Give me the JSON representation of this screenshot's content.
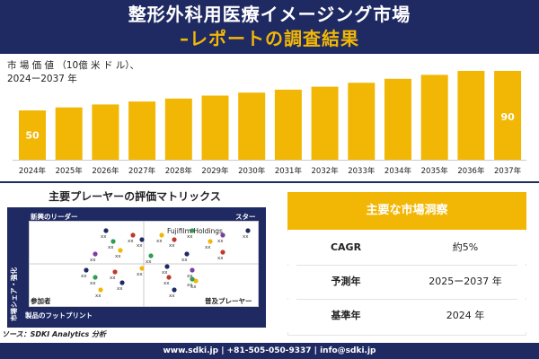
{
  "header": {
    "title_line1": "整形外科用医療イメージング市場",
    "title_line2": "–レポートの調査結果"
  },
  "market": {
    "label_line1": "市 場 価 値 （10億 米 ド ル）、",
    "label_line2": "2024ー2037 年"
  },
  "chart_data": {
    "type": "bar",
    "categories": [
      "2024年",
      "2025年",
      "2026年",
      "2027年",
      "2028年",
      "2029年",
      "2030年",
      "2031年",
      "2032年",
      "2033年",
      "2034年",
      "2035年",
      "2036年",
      "2037年"
    ],
    "values": [
      50,
      53,
      56,
      59,
      62,
      65,
      68,
      71,
      74,
      78,
      82,
      86,
      90,
      90
    ],
    "data_labels": {
      "0": "50",
      "13": "90"
    },
    "ylim": [
      0,
      100
    ],
    "color": "#f2b705",
    "grid": false
  },
  "matrix": {
    "title": "主要プレーヤーの評価マトリックス",
    "q_top_left": "新興のリーダー",
    "q_top_right": "スター",
    "q_bottom_left": "参加者",
    "q_bottom_right": "普及プレーヤー",
    "x_axis": "製品のフットプリント",
    "y_axis": "市場シェア・強化",
    "highlight": "Fujifilm Holdings",
    "point_label": "xx",
    "colors": {
      "frame": "#1f2a63",
      "accent": "#f2b705",
      "dot_blue": "#1f2a63",
      "dot_red": "#c0392b",
      "dot_green": "#2e9e4f",
      "dot_purple": "#7a3fa0",
      "dot_orange": "#f2b705"
    }
  },
  "source": "ソース：SDKI Analytics 分析",
  "summary": {
    "title": "主要な市場洞察",
    "rows": [
      {
        "key": "CAGR",
        "value": "約5%"
      },
      {
        "key": "予測年",
        "value": "2025ー2037 年"
      },
      {
        "key": "基準年",
        "value": "2024 年"
      }
    ]
  },
  "footer": "www.sdki.jp | +81-505-050-9337 | info@sdki.jp",
  "colors": {
    "navy": "#1f2a63",
    "gold": "#f2b705"
  }
}
